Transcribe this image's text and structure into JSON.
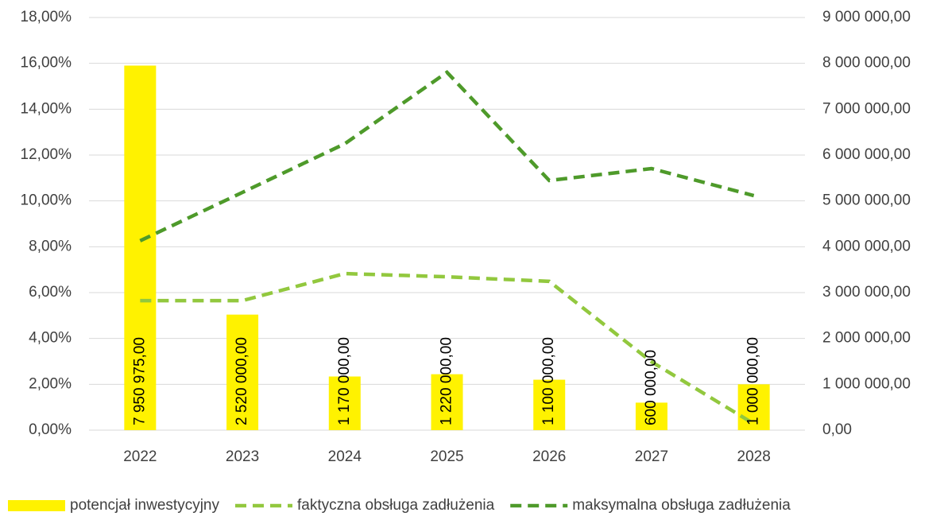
{
  "chart_data": {
    "type": "combo",
    "categories": [
      "2022",
      "2023",
      "2024",
      "2025",
      "2026",
      "2027",
      "2028"
    ],
    "series": [
      {
        "name": "potencjał inwestycyjny",
        "type": "bar",
        "axis": "y2",
        "color": "#fff200",
        "values": [
          7950975,
          2520000,
          1170000,
          1220000,
          1100000,
          600000,
          1000000
        ],
        "value_labels": [
          "7 950 975,00",
          "2 520 000,00",
          "1 170 000,00",
          "1 220 000,00",
          "1 100 000,00",
          "600 000,00",
          "1 000 000,00"
        ]
      },
      {
        "name": "faktyczna obsługa zadłużenia",
        "type": "line",
        "axis": "y",
        "color": "#92c83e",
        "values": [
          5.65,
          5.65,
          6.83,
          6.69,
          6.49,
          2.98,
          0.28
        ]
      },
      {
        "name": "maksymalna obsługa zadłużenia",
        "type": "line",
        "axis": "y",
        "color": "#4e9a2a",
        "values": [
          8.26,
          10.37,
          12.49,
          15.61,
          10.89,
          11.41,
          10.23
        ]
      }
    ],
    "ylim": [
      0,
      18
    ],
    "yticks": [
      {
        "value": 0,
        "label": "0,00%"
      },
      {
        "value": 2,
        "label": "2,00%"
      },
      {
        "value": 4,
        "label": "4,00%"
      },
      {
        "value": 6,
        "label": "6,00%"
      },
      {
        "value": 8,
        "label": "8,00%"
      },
      {
        "value": 10,
        "label": "10,00%"
      },
      {
        "value": 12,
        "label": "12,00%"
      },
      {
        "value": 14,
        "label": "14,00%"
      },
      {
        "value": 16,
        "label": "16,00%"
      },
      {
        "value": 18,
        "label": "18,00%"
      }
    ],
    "y2lim": [
      0,
      9000000
    ],
    "y2ticks": [
      {
        "value": 0,
        "label": "0,00"
      },
      {
        "value": 1000000,
        "label": "1 000 000,00"
      },
      {
        "value": 2000000,
        "label": "2 000 000,00"
      },
      {
        "value": 3000000,
        "label": "3 000 000,00"
      },
      {
        "value": 4000000,
        "label": "4 000 000,00"
      },
      {
        "value": 5000000,
        "label": "5 000 000,00"
      },
      {
        "value": 6000000,
        "label": "6 000 000,00"
      },
      {
        "value": 7000000,
        "label": "7 000 000,00"
      },
      {
        "value": 8000000,
        "label": "8 000 000,00"
      },
      {
        "value": 9000000,
        "label": "9 000 000,00"
      }
    ],
    "grid": true,
    "legend": "bottom"
  }
}
